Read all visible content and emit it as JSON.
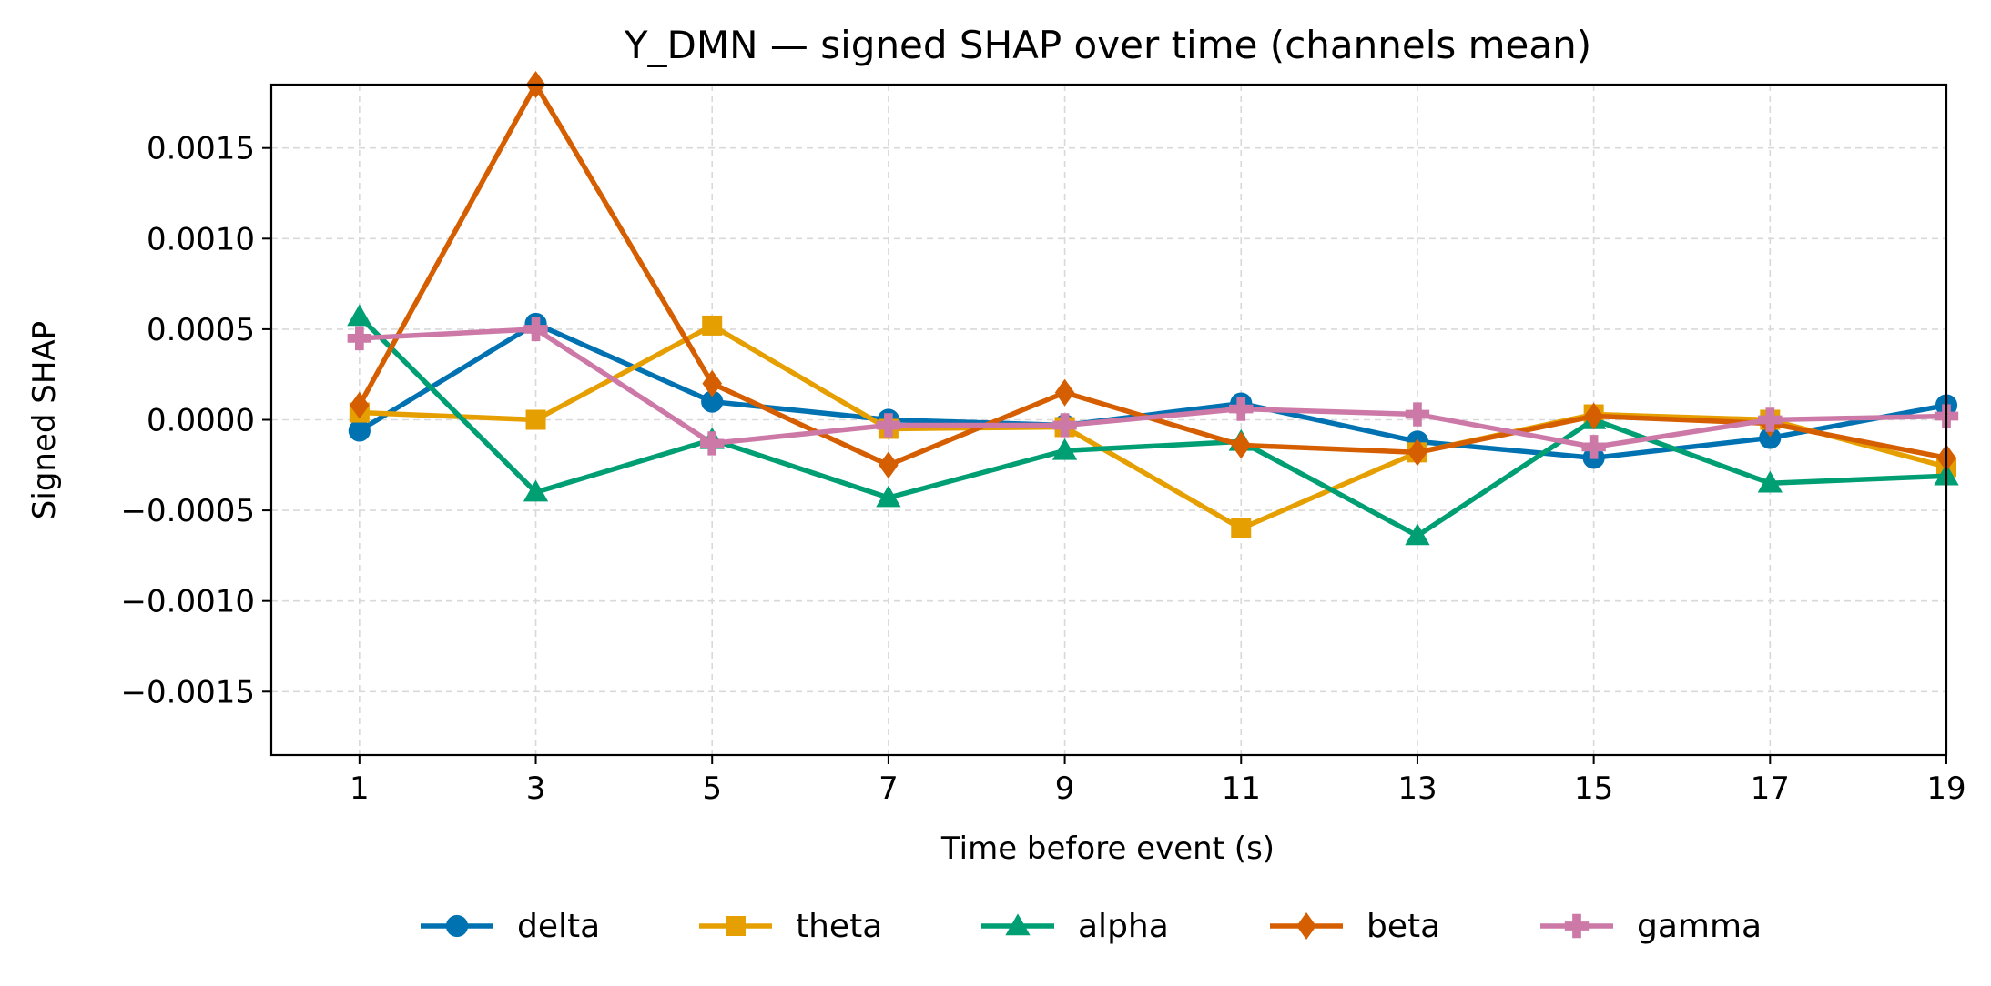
{
  "chart_data": {
    "type": "line",
    "title": "Y_DMN — signed SHAP over time (channels mean)",
    "xlabel": "Time before event (s)",
    "ylabel": "Signed SHAP",
    "x": [
      1,
      3,
      5,
      7,
      9,
      11,
      13,
      15,
      17,
      19
    ],
    "x_ticks": [
      "1",
      "3",
      "5",
      "7",
      "9",
      "11",
      "13",
      "15",
      "17",
      "19"
    ],
    "xlim": [
      0,
      19
    ],
    "ylim": [
      -0.00185,
      0.00185
    ],
    "y_ticks": [
      0.0015,
      0.001,
      0.0005,
      0.0,
      -0.0005,
      -0.001,
      -0.0015
    ],
    "y_tick_labels": [
      "0.0015",
      "0.0010",
      "0.0005",
      "0.0000",
      "−0.0005",
      "−0.0010",
      "−0.0015"
    ],
    "grid": true,
    "legend_position": "bottom-center",
    "series": [
      {
        "name": "delta",
        "color": "#0072B2",
        "marker": "circle",
        "values": [
          -6e-05,
          0.00053,
          0.0001,
          0.0,
          -3e-05,
          9e-05,
          -0.00012,
          -0.00021,
          -0.0001,
          8e-05
        ]
      },
      {
        "name": "theta",
        "color": "#E69F00",
        "marker": "square",
        "values": [
          4e-05,
          0.0,
          0.00052,
          -5e-05,
          -4e-05,
          -0.0006,
          -0.00018,
          3e-05,
          0.0,
          -0.00026
        ]
      },
      {
        "name": "alpha",
        "color": "#009E73",
        "marker": "triangle",
        "values": [
          0.00057,
          -0.0004,
          -0.00011,
          -0.00043,
          -0.00017,
          -0.00012,
          -0.00064,
          0.0,
          -0.00035,
          -0.00031
        ]
      },
      {
        "name": "beta",
        "color": "#D55E00",
        "marker": "diamond",
        "values": [
          8e-05,
          0.00185,
          0.0002,
          -0.00025,
          0.00015,
          -0.00014,
          -0.00018,
          2e-05,
          -2e-05,
          -0.00021
        ]
      },
      {
        "name": "gamma",
        "color": "#CC79A7",
        "marker": "plus",
        "values": [
          0.00045,
          0.0005,
          -0.00013,
          -3e-05,
          -3e-05,
          6e-05,
          3e-05,
          -0.00015,
          0.0,
          2e-05
        ]
      }
    ]
  }
}
